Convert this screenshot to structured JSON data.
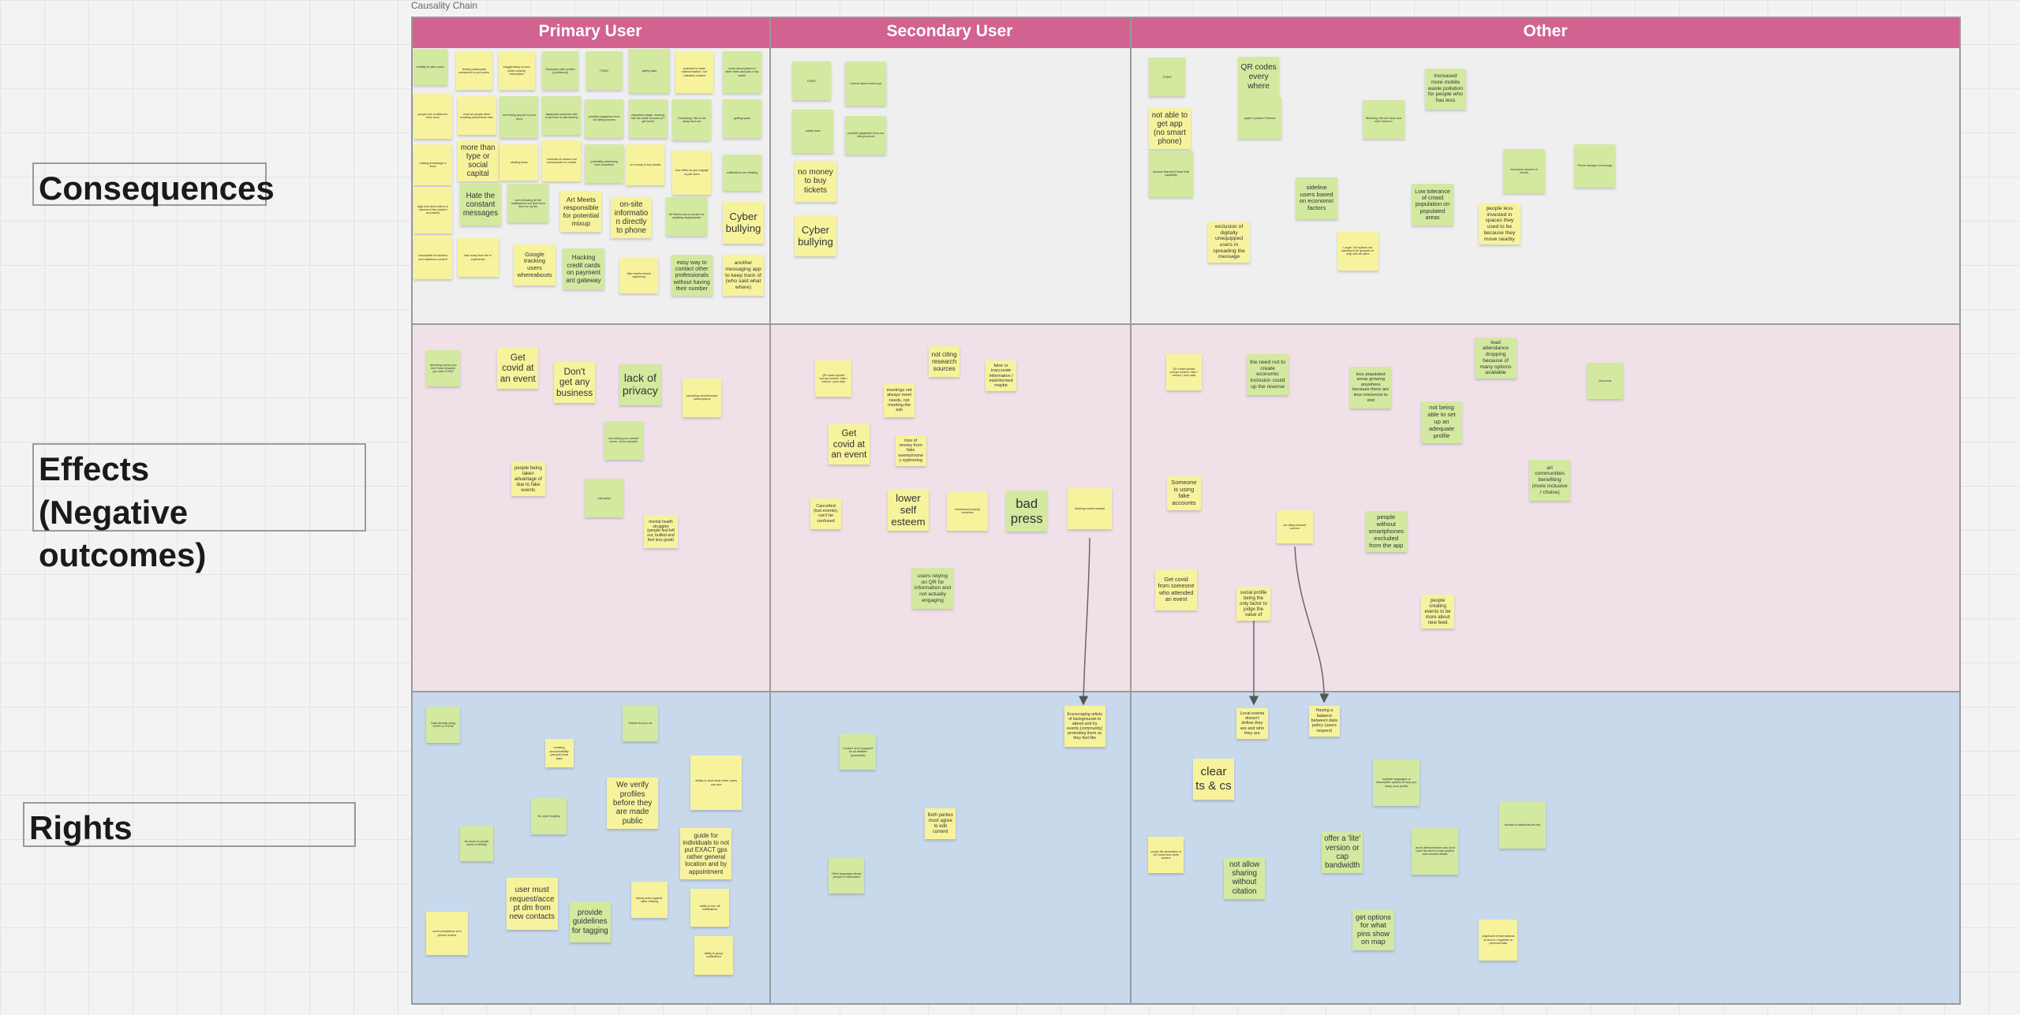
{
  "board": {
    "title": "Causality Chain",
    "columns": [
      "Primary User",
      "Secondary User",
      "Other"
    ],
    "rows": [
      [
        "Consequences"
      ],
      [
        "Effects",
        "(Negative outcomes)"
      ],
      [
        "Rights"
      ]
    ],
    "notes": [
      "visibility to other users",
      "feeling inadequate compared to your peers",
      "exaggerating on your public-sharing information",
      "Obsession with profiles (proficiency)",
      "FOMO",
      "safety risks",
      "potential to share misinformation / not validated content",
      "Learn about places in other cities and plan a trip easier",
      "people not credited for their work",
      "meet as people when traveling somewhere else",
      "not finding anyone in your area",
      "disappoint someone with a low level of skill delivery",
      "possible plagiarism from not citing sources",
      "regulation (stage: sharing) has the same sources so I get bored",
      "Everything I like is far away from me",
      "getting spam",
      "making knowledge a force",
      "more than type or social capital",
      "stealing ideas",
      "overload of content not consumable on mobile",
      "potentially reinforcing echo chambers",
      "no money to buy tickets",
      "how often do you engage vs just store",
      "notifications are irritating",
      "tags that dont reflect or represent the content accurately",
      "Hate the constant messages",
      "over-following all the notifications and dont have time for my life",
      "Art Meets responsible for potential mixup",
      "on-site information directly to phone",
      "Art Meets has to monitor for anything inappropriate",
      "Cyber bullying",
      "susceptible to hackers and malicious content",
      "take away from the irl experience",
      "Google tracking users whereabouts",
      "Hacking credit cards on payment ant gateway",
      "fake events money syphoning",
      "easy way to contact other professionals without having their number",
      "another messaging app to keep track of (who said what where)",
      "FOMO",
      "Cannot attend meet-ups",
      "safety risks",
      "possible plagiarism from not citing sources",
      "no money to buy tickets",
      "Cyber bullying",
      "FOMO",
      "QR codes every where",
      "not able to get app (no smart phone)",
      "paper / posters Pollution",
      "Increased more mobile waste pollution for people who has less",
      "Still being 'left out' since you can't 'check in'",
      "phones that don't have that capability",
      "excessive amount of events",
      "Phone storage not enough",
      "sideline users based on economic factors",
      "Low tolerance of crowd population on populated areas",
      "people less invested in spaces they used to be because they move nearby",
      "exclusion of digitally unequipped users in spreading the message",
      "Larger 'hot' spaces not wanting to be grouped on map with all users",
      "Spending money you don't have because you have FOMO",
      "Get covid at an event",
      "Don't get any business",
      "lack of privacy",
      "cancelling memberships/ subscriptions",
      "not exiting your comfort zones / echo chamber",
      "people being taken advantage of due to fake events",
      "bad press",
      "mental health struggles (people feel left out, bullied and feel less good)",
      "QR codes spread corrupt content / fake / misuse / poor data",
      "not citing research sources",
      "false or inaccurate information / misinformed maybe",
      "meetings not always meet needs, not meeting the ask",
      "Get covid at an event",
      "loss of money from fake events/money syphoning",
      "Cancelled (lost events), can't be confused",
      "lower self esteem",
      "intellectual property breaches",
      "bad press",
      "keeping events classist",
      "users relying on QR for information and not actually engaging",
      "QR codes spread corrupt content / fake / misuse / poor data",
      "the need not to create economic inclusion could up the reverse",
      "lead attendance dropping because of many options available",
      "bad press",
      "less populated areas growing anywhere because there are less resources to visit",
      "not being able to set up an adequate profile",
      "Someone is using fake accounts",
      "art communities benefiting (more inclusive / choice)",
      "not citing research sources",
      "people without smartphones excluded from the app",
      "Get covid from someone who attended an event",
      "social profile being the only factor to judge the value of",
      "people creating events to be more about new feed",
      "Data security using GDPR or POPIA",
      "Shame for your art",
      "creating accountability (people) that data",
      "ability to limit what other users can see",
      "We verify profiles before they are made public",
      "No cyber bullying",
      "No fraud on people cards or identity",
      "guide for individuals to not put EXACT gps rather general location and by appointment",
      "user must request/accept dm from new contacts",
      "taking action against cyber bullying",
      "ability to turn off notifications",
      "provide guidelines for tagging",
      "covid compliance at in person events",
      "ability to group notifications",
      "Contact us be equipped for all facilities (accessible)",
      "Encouraging artists of backgrounds to attend and try events (community) promoting them so they feel like",
      "Both parties must agree to edit content",
      "Other languages allows people to understand",
      "Local events doesn't define they are and who they are",
      "Having a balance between data policy (users respect)",
      "clear ts & cs",
      "multiple languages or descriptive options to help you setup your profile",
      "access to talks/lectures etc.",
      "control the generation of QR codes and verify content",
      "offer a 'lite' version or cap bandwidth",
      "avoid artists/venues who dont have the tech to load profiles and contact details",
      "not allow sharing without citation",
      "get options for what pins show on map",
      "cognisant of international ts and cs / legalities re personal data"
    ]
  }
}
